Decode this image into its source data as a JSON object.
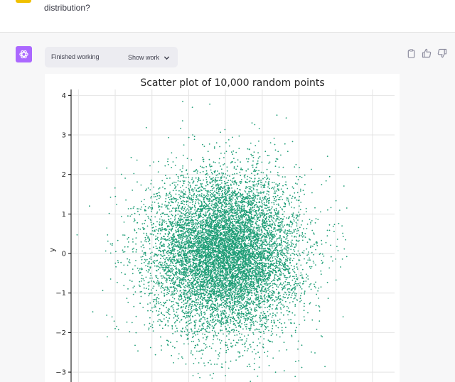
{
  "user_message": {
    "text_visible": "distribution?",
    "avatar_color": "#f0c000"
  },
  "assistant": {
    "avatar_color": "#ab68ff",
    "status_text": "Finished working",
    "toggle_label": "Show work",
    "actions": [
      "clipboard-icon",
      "thumbs-up-icon",
      "thumbs-down-icon"
    ]
  },
  "chart_data": {
    "type": "scatter",
    "title": "Scatter plot of 10,000 random points",
    "xlabel": "",
    "ylabel": "y",
    "n_points": 10000,
    "distribution": "standard normal in x and y (mean 0, std 1)",
    "color": "#1f9e77",
    "xlim": [
      -4.2,
      4.6
    ],
    "ylim": [
      -3.25,
      4.15
    ],
    "yticks": [
      -3,
      -2,
      -1,
      0,
      1,
      2,
      3,
      4
    ],
    "ytick_labels": [
      "−3",
      "−2",
      "−1",
      "0",
      "1",
      "2",
      "3",
      "4"
    ],
    "grid": true,
    "outliers": [
      {
        "x": -3.7,
        "y": 1.2
      },
      {
        "x": 3.3,
        "y": 1.15
      },
      {
        "x": -0.9,
        "y": 3.7
      },
      {
        "x": 1.4,
        "y": 3.5
      },
      {
        "x": -3.0,
        "y": -1.9
      },
      {
        "x": 3.2,
        "y": -1.6
      }
    ]
  }
}
